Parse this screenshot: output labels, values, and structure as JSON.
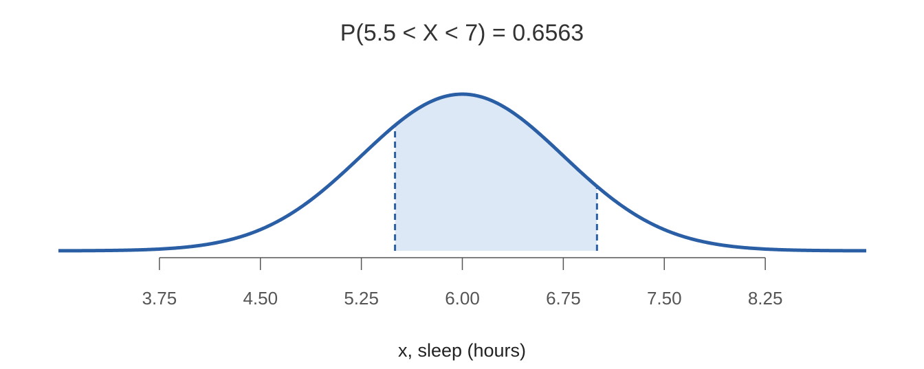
{
  "chart_data": {
    "type": "normal",
    "title": "P(5.5 < X < 7) = 0.6563",
    "x_label": "x, sleep (hours)",
    "mean": 6,
    "sd": 0.75,
    "shade": [
      5.5,
      7
    ],
    "xlim": [
      3,
      9
    ],
    "xticks": [
      3.75,
      {
        "value": 4.5,
        "label": "4.50"
      },
      5.25,
      {
        "value": 6,
        "label": "6.00"
      },
      6.75,
      {
        "value": 7.5,
        "label": "7.50"
      },
      8.25
    ],
    "color": "#2b5fa5",
    "fill_color": "#dce8f6"
  }
}
